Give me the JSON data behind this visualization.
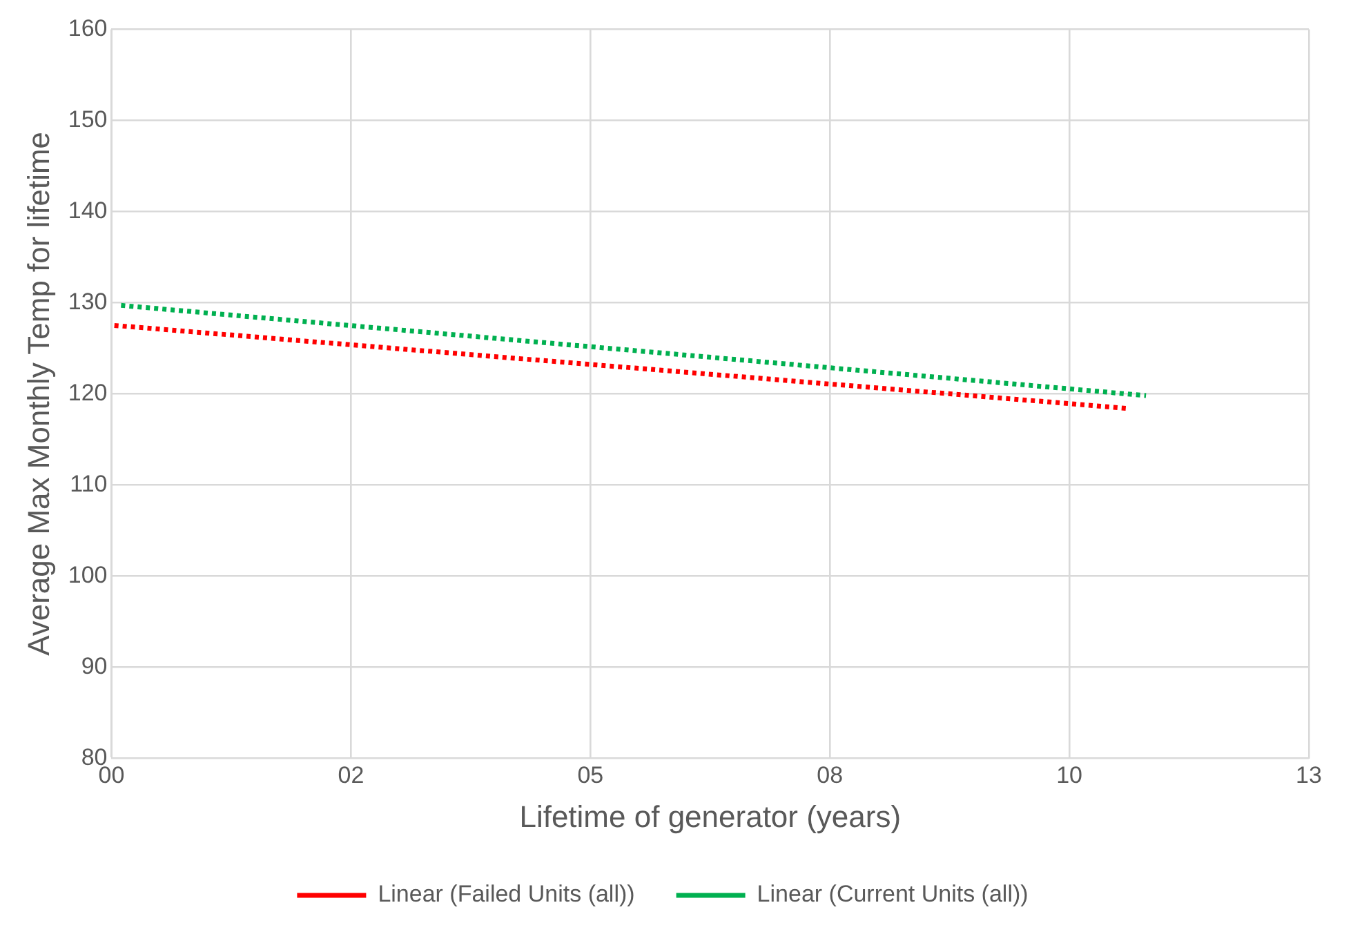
{
  "chart_data": {
    "type": "line",
    "xlabel": "Lifetime of generator (years)",
    "ylabel": "Average Max Monthly Temp for lifetime",
    "series": [
      {
        "name": "Linear (Failed Units (all))",
        "color": "#ff0000",
        "x": [
          0.03,
          10.6
        ],
        "values": [
          127.5,
          118.4
        ]
      },
      {
        "name": "Linear (Current Units (all))",
        "color": "#00b050",
        "x": [
          0.1,
          10.8
        ],
        "values": [
          129.7,
          119.8
        ]
      }
    ],
    "xlim": [
      0,
      12.5
    ],
    "xticks": [
      {
        "value": 0,
        "label": "00"
      },
      {
        "value": 2.5,
        "label": "02"
      },
      {
        "value": 5,
        "label": "05"
      },
      {
        "value": 7.5,
        "label": "08"
      },
      {
        "value": 10,
        "label": "10"
      },
      {
        "value": 12.5,
        "label": "13"
      }
    ],
    "ylim": [
      80,
      160
    ],
    "yticks": [
      80,
      90,
      100,
      110,
      120,
      130,
      140,
      150,
      160
    ],
    "grid": true,
    "legend": "bottom",
    "marker": "none",
    "line_style": "dotted"
  }
}
